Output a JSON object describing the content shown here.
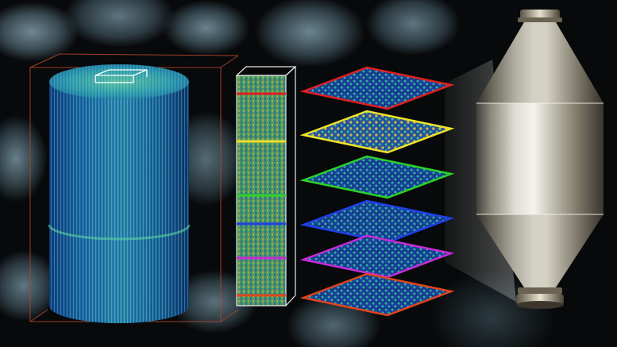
{
  "scene": {
    "layer_colors": [
      "#e02020",
      "#f2e227",
      "#2ad22a",
      "#1f3fe8",
      "#c82ad8",
      "#e0451c"
    ]
  }
}
